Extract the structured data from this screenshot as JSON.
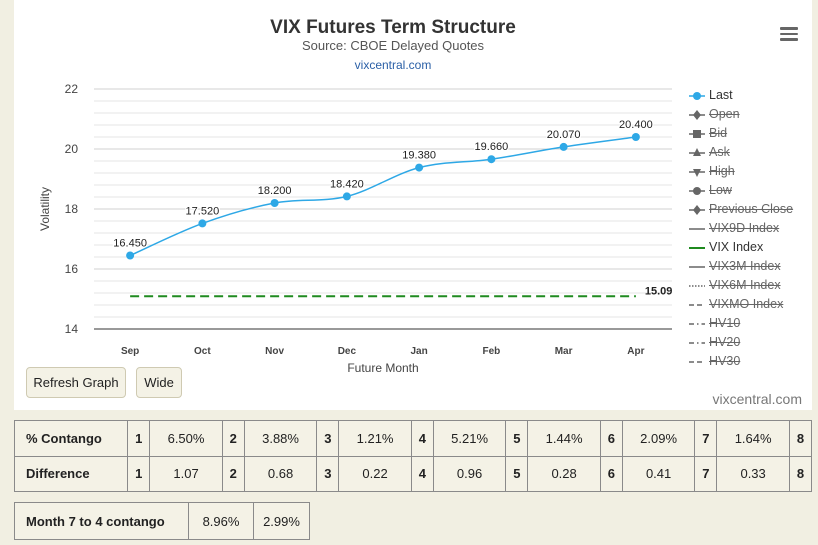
{
  "chart": {
    "title": "VIX Futures Term Structure",
    "subtitle": "Source: CBOE Delayed Quotes",
    "link": "vixcentral.com",
    "watermark": "vixcentral.com",
    "menu_icon": "hamburger-menu-icon"
  },
  "buttons": {
    "refresh": "Refresh Graph",
    "wide": "Wide"
  },
  "legend": [
    {
      "label": "Last",
      "symbol": "circle",
      "color": "#2ea8e6",
      "enabled": true
    },
    {
      "label": "Open",
      "symbol": "diamond",
      "color": "#666666",
      "enabled": false
    },
    {
      "label": "Bid",
      "symbol": "square",
      "color": "#666666",
      "enabled": false
    },
    {
      "label": "Ask",
      "symbol": "triangle-up",
      "color": "#666666",
      "enabled": false
    },
    {
      "label": "High",
      "symbol": "triangle-down",
      "color": "#666666",
      "enabled": false
    },
    {
      "label": "Low",
      "symbol": "circle",
      "color": "#666666",
      "enabled": false
    },
    {
      "label": "Previous Close",
      "symbol": "diamond",
      "color": "#666666",
      "enabled": false
    },
    {
      "label": "VIX9D Index",
      "symbol": "solid",
      "color": "#666666",
      "enabled": false
    },
    {
      "label": "VIX Index",
      "symbol": "solid",
      "color": "#1f8a1f",
      "enabled": true
    },
    {
      "label": "VIX3M Index",
      "symbol": "solid",
      "color": "#666666",
      "enabled": false
    },
    {
      "label": "VIX6M Index",
      "symbol": "dotted",
      "color": "#666666",
      "enabled": false
    },
    {
      "label": "VIXMO Index",
      "symbol": "dashed",
      "color": "#666666",
      "enabled": false
    },
    {
      "label": "HV10",
      "symbol": "dashdot",
      "color": "#666666",
      "enabled": false
    },
    {
      "label": "HV20",
      "symbol": "dashdot",
      "color": "#666666",
      "enabled": false
    },
    {
      "label": "HV30",
      "symbol": "dashed",
      "color": "#666666",
      "enabled": false
    }
  ],
  "chart_data": {
    "type": "line",
    "title": "VIX Futures Term Structure",
    "subtitle": "Source: CBOE Delayed Quotes",
    "xlabel": "Future Month",
    "ylabel": "Volatility",
    "categories": [
      "Sep",
      "Oct",
      "Nov",
      "Dec",
      "Jan",
      "Feb",
      "Mar",
      "Apr"
    ],
    "ylim": [
      14,
      22
    ],
    "yticks": [
      "14",
      "16",
      "18",
      "20",
      "22"
    ],
    "grid": true,
    "legend_position": "right",
    "series": [
      {
        "name": "Last",
        "color": "#2ea8e6",
        "values": [
          16.45,
          17.52,
          18.2,
          18.42,
          19.38,
          19.66,
          20.07,
          20.4
        ],
        "labels": [
          "16.450",
          "17.520",
          "18.200",
          "18.420",
          "19.380",
          "19.660",
          "20.070",
          "20.400"
        ]
      },
      {
        "name": "VIX Index",
        "color": "#1f8a1f",
        "style": "dashed",
        "values": [
          15.09,
          15.09,
          15.09,
          15.09,
          15.09,
          15.09,
          15.09,
          15.09
        ],
        "end_label": "15.09"
      }
    ]
  },
  "tables": {
    "contango": {
      "row1_label": "% Contango",
      "row1": [
        {
          "idx": "1",
          "val": "6.50%"
        },
        {
          "idx": "2",
          "val": "3.88%"
        },
        {
          "idx": "3",
          "val": "1.21%"
        },
        {
          "idx": "4",
          "val": "5.21%"
        },
        {
          "idx": "5",
          "val": "1.44%"
        },
        {
          "idx": "6",
          "val": "2.09%"
        },
        {
          "idx": "7",
          "val": "1.64%"
        },
        {
          "idx": "8",
          "val": ""
        }
      ],
      "row2_label": "Difference",
      "row2": [
        {
          "idx": "1",
          "val": "1.07"
        },
        {
          "idx": "2",
          "val": "0.68"
        },
        {
          "idx": "3",
          "val": "0.22"
        },
        {
          "idx": "4",
          "val": "0.96"
        },
        {
          "idx": "5",
          "val": "0.28"
        },
        {
          "idx": "6",
          "val": "0.41"
        },
        {
          "idx": "7",
          "val": "0.33"
        },
        {
          "idx": "8",
          "val": ""
        }
      ]
    },
    "month74": {
      "label": "Month 7 to 4 contango",
      "v1": "8.96%",
      "v2": "2.99%"
    }
  }
}
